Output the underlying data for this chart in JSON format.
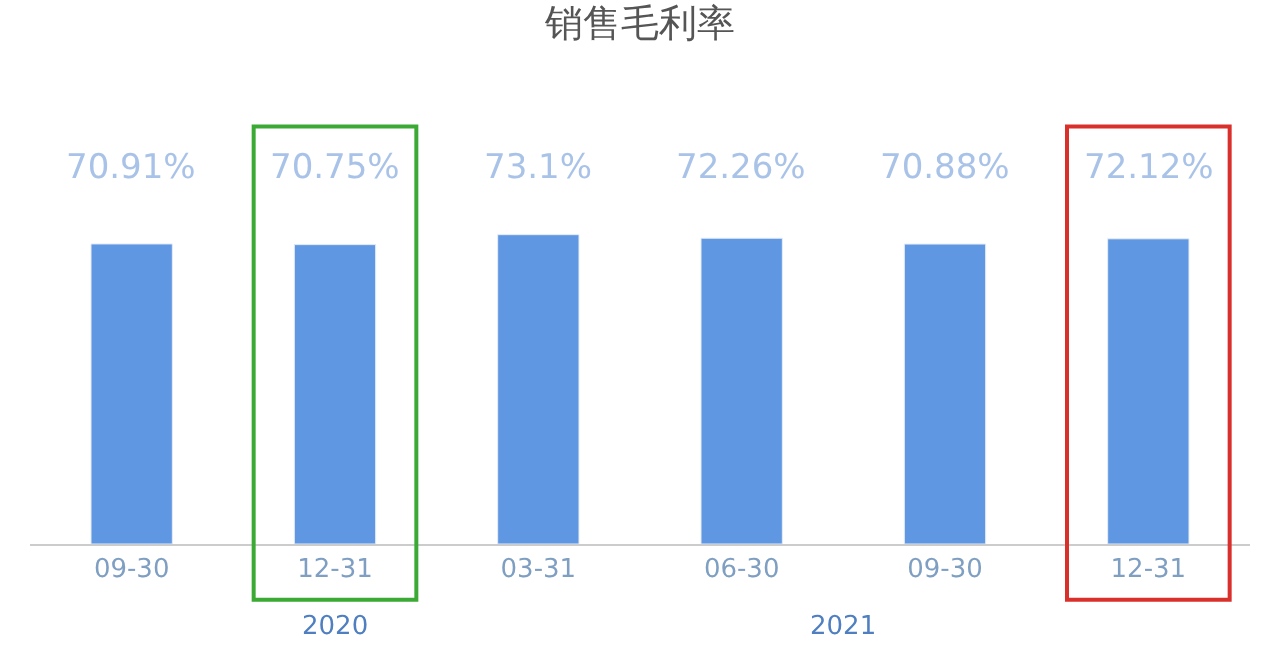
{
  "chart_data": {
    "type": "bar",
    "title": "销售毛利率",
    "categories": [
      "09-30",
      "12-31",
      "03-31",
      "06-30",
      "09-30",
      "12-31"
    ],
    "values": [
      70.91,
      70.75,
      73.1,
      72.26,
      70.88,
      72.12
    ],
    "value_labels": [
      "70.91%",
      "70.75%",
      "73.1%",
      "72.26%",
      "70.88%",
      "72.12%"
    ],
    "color": "#5f97e2",
    "annotations": [
      "2020",
      "2021"
    ]
  }
}
